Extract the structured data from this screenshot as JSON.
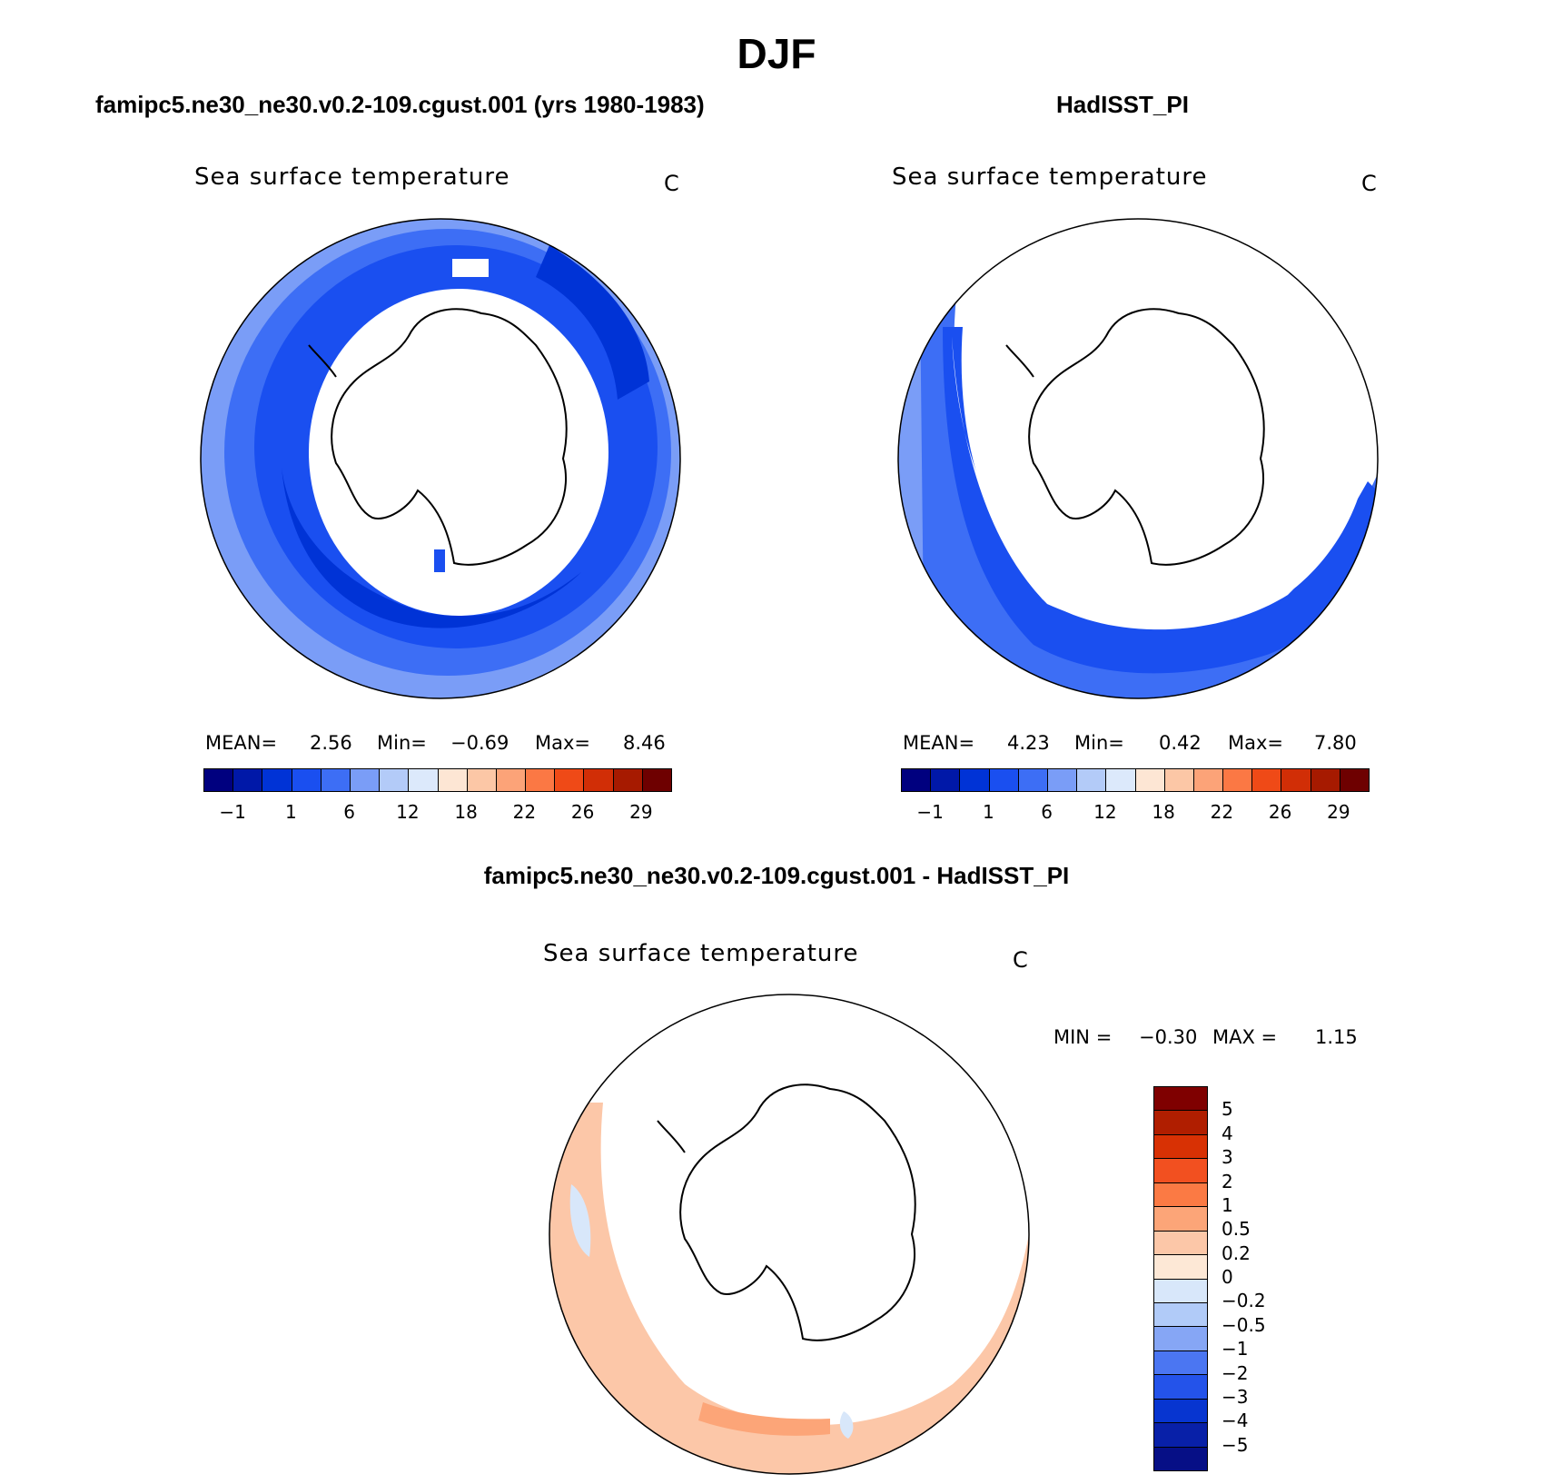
{
  "figure": {
    "season_title": "DJF",
    "left_case_title": "famipc5.ne30_ne30.v0.2-109.cgust.001 (yrs 1980-1983)",
    "right_case_title": "HadISST_PI",
    "diff_case_title": "famipc5.ne30_ne30.v0.2-109.cgust.001 - HadISST_PI"
  },
  "chart_data": [
    {
      "type": "heatmap",
      "projection": "south-polar-stereographic",
      "title": "Sea surface temperature",
      "units": "C",
      "stats": {
        "mean_label": "MEAN=",
        "mean": "2.56",
        "min_label": "Min=",
        "min": "−0.69",
        "max_label": "Max=",
        "max": "8.46"
      },
      "colorbar": {
        "tick_labels": [
          "−1",
          "1",
          "6",
          "12",
          "18",
          "22",
          "26",
          "29"
        ],
        "colors": [
          "#00007f",
          "#0018a8",
          "#0033d6",
          "#1a4ff0",
          "#3d6ef5",
          "#7a9df7",
          "#b3cbf8",
          "#dce9fb",
          "#fde6d4",
          "#fcc7a6",
          "#fca378",
          "#fb7844",
          "#ef4a17",
          "#d12e06",
          "#a61a00",
          "#6e0000"
        ]
      }
    },
    {
      "type": "heatmap",
      "projection": "south-polar-stereographic",
      "title": "Sea surface temperature",
      "units": "C",
      "stats": {
        "mean_label": "MEAN=",
        "mean": "4.23",
        "min_label": "Min=",
        "min": "0.42",
        "max_label": "Max=",
        "max": "7.80"
      },
      "colorbar": {
        "tick_labels": [
          "−1",
          "1",
          "6",
          "12",
          "18",
          "22",
          "26",
          "29"
        ],
        "colors": [
          "#00007f",
          "#0018a8",
          "#0033d6",
          "#1a4ff0",
          "#3d6ef5",
          "#7a9df7",
          "#b3cbf8",
          "#dce9fb",
          "#fde6d4",
          "#fcc7a6",
          "#fca378",
          "#fb7844",
          "#ef4a17",
          "#d12e06",
          "#a61a00",
          "#6e0000"
        ]
      }
    },
    {
      "type": "heatmap",
      "projection": "south-polar-stereographic",
      "title": "Sea surface temperature",
      "units": "C",
      "stats": {
        "min_label": "MIN =",
        "min": "−0.30",
        "max_label": "MAX =",
        "max": "1.15"
      },
      "colorbar": {
        "tick_labels": [
          "5",
          "4",
          "3",
          "2",
          "1",
          "0.5",
          "0.2",
          "0",
          "−0.2",
          "−0.5",
          "−1",
          "−2",
          "−3",
          "−4",
          "−5"
        ],
        "colors": [
          "#7f0000",
          "#b01e00",
          "#d83104",
          "#f25020",
          "#fb7a44",
          "#fca578",
          "#fcc7a8",
          "#fde8d6",
          "#d8e7fa",
          "#b1cbf8",
          "#86a6f5",
          "#4b76f2",
          "#2453ea",
          "#0735d0",
          "#0820a8",
          "#060f86"
        ]
      }
    }
  ]
}
